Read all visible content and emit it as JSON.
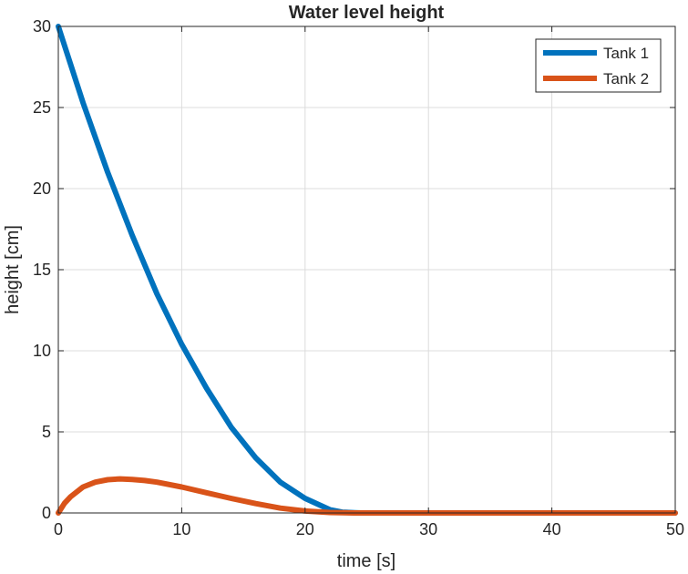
{
  "chart_data": {
    "type": "line",
    "title": "Water level height",
    "xlabel": "time [s]",
    "ylabel": "height [cm]",
    "xlim": [
      0,
      50
    ],
    "ylim": [
      0,
      30
    ],
    "xticks": [
      0,
      10,
      20,
      30,
      40,
      50
    ],
    "yticks": [
      0,
      5,
      10,
      15,
      20,
      25,
      30
    ],
    "grid": true,
    "legend": {
      "position": "top-right"
    },
    "series": [
      {
        "name": "Tank 1",
        "color": "#0072BD",
        "x": [
          0,
          2,
          4,
          6,
          8,
          10,
          12,
          14,
          16,
          18,
          20,
          22,
          23,
          24,
          24.5,
          25,
          30,
          35,
          40,
          45,
          50
        ],
        "y": [
          30,
          25.3,
          21.0,
          17.1,
          13.5,
          10.4,
          7.7,
          5.3,
          3.4,
          1.9,
          0.9,
          0.2,
          0.05,
          0.01,
          0,
          0,
          0,
          0,
          0,
          0,
          0
        ]
      },
      {
        "name": "Tank 2",
        "color": "#D95319",
        "x": [
          0,
          0.5,
          1,
          2,
          3,
          4,
          5,
          6,
          7,
          8,
          10,
          12,
          14,
          16,
          18,
          20,
          22,
          24,
          25,
          30,
          35,
          40,
          45,
          50
        ],
        "y": [
          0,
          0.6,
          1.0,
          1.6,
          1.9,
          2.05,
          2.1,
          2.07,
          2.0,
          1.9,
          1.6,
          1.25,
          0.9,
          0.58,
          0.3,
          0.12,
          0.03,
          0.0,
          0,
          0,
          0,
          0,
          0,
          0
        ]
      }
    ]
  }
}
